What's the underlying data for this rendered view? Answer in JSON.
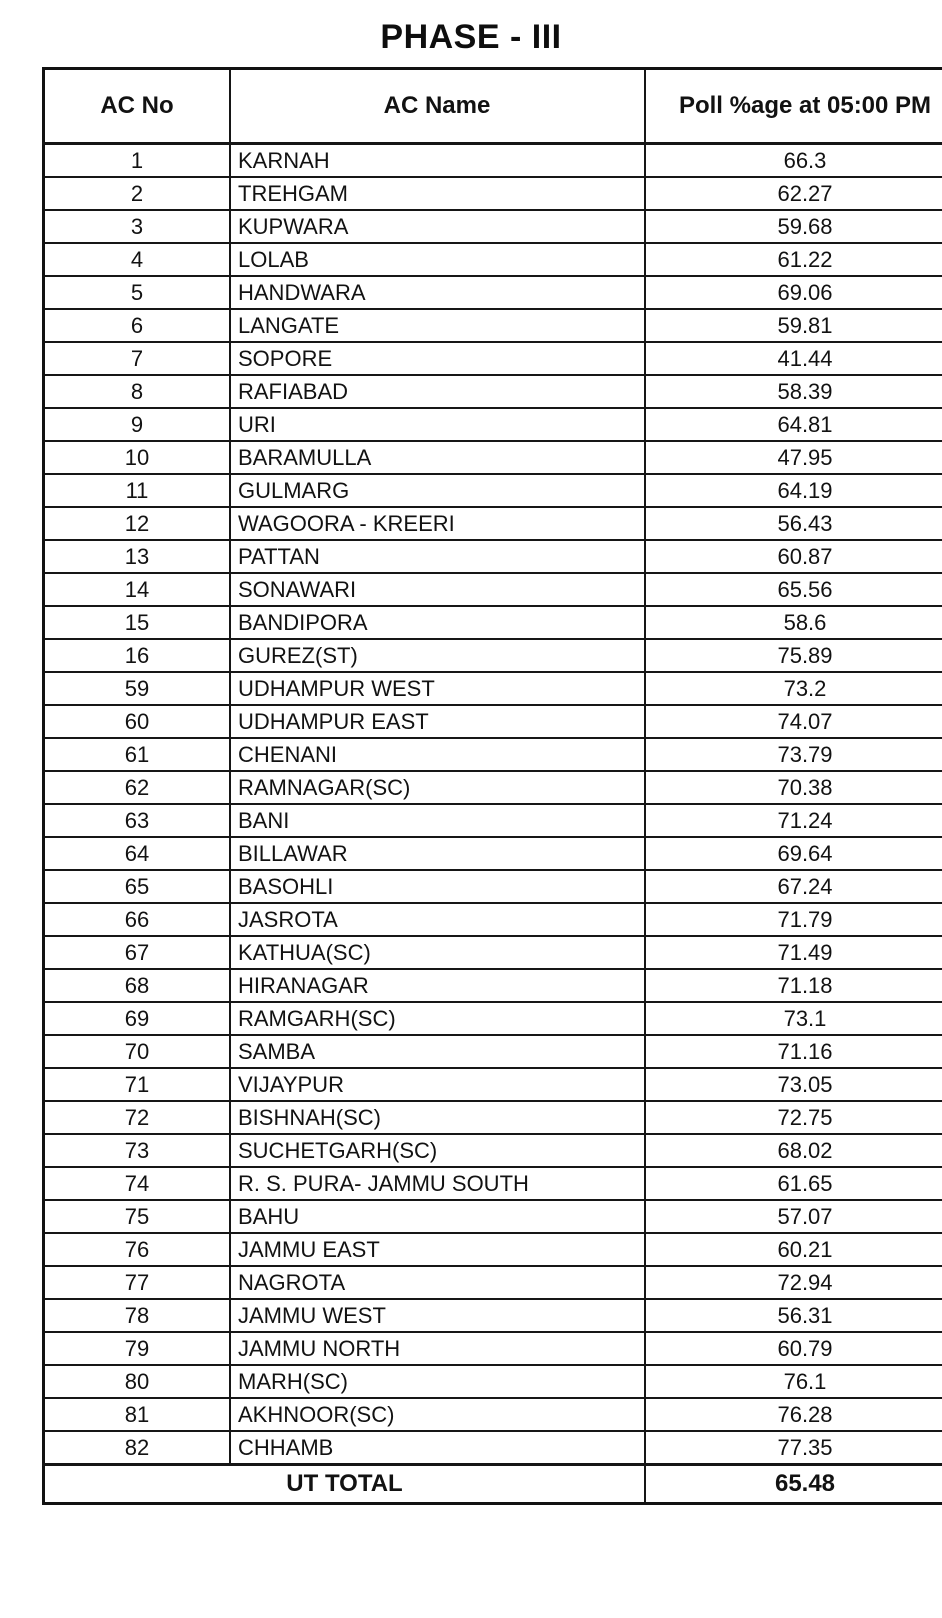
{
  "page": {
    "title": "PHASE - III"
  },
  "table": {
    "headers": [
      "AC No",
      "AC Name",
      "Poll %age at 05:00 PM"
    ],
    "rows": [
      {
        "ac_no": "1",
        "ac_name": "KARNAH",
        "poll_pct": "66.3"
      },
      {
        "ac_no": "2",
        "ac_name": "TREHGAM",
        "poll_pct": "62.27"
      },
      {
        "ac_no": "3",
        "ac_name": "KUPWARA",
        "poll_pct": "59.68"
      },
      {
        "ac_no": "4",
        "ac_name": "LOLAB",
        "poll_pct": "61.22"
      },
      {
        "ac_no": "5",
        "ac_name": "HANDWARA",
        "poll_pct": "69.06"
      },
      {
        "ac_no": "6",
        "ac_name": "LANGATE",
        "poll_pct": "59.81"
      },
      {
        "ac_no": "7",
        "ac_name": "SOPORE",
        "poll_pct": "41.44"
      },
      {
        "ac_no": "8",
        "ac_name": "RAFIABAD",
        "poll_pct": "58.39"
      },
      {
        "ac_no": "9",
        "ac_name": "URI",
        "poll_pct": "64.81"
      },
      {
        "ac_no": "10",
        "ac_name": "BARAMULLA",
        "poll_pct": "47.95"
      },
      {
        "ac_no": "11",
        "ac_name": "GULMARG",
        "poll_pct": "64.19"
      },
      {
        "ac_no": "12",
        "ac_name": "WAGOORA - KREERI",
        "poll_pct": "56.43"
      },
      {
        "ac_no": "13",
        "ac_name": "PATTAN",
        "poll_pct": "60.87"
      },
      {
        "ac_no": "14",
        "ac_name": "SONAWARI",
        "poll_pct": "65.56"
      },
      {
        "ac_no": "15",
        "ac_name": "BANDIPORA",
        "poll_pct": "58.6"
      },
      {
        "ac_no": "16",
        "ac_name": "GUREZ(ST)",
        "poll_pct": "75.89"
      },
      {
        "ac_no": "59",
        "ac_name": "UDHAMPUR WEST",
        "poll_pct": "73.2"
      },
      {
        "ac_no": "60",
        "ac_name": "UDHAMPUR EAST",
        "poll_pct": "74.07"
      },
      {
        "ac_no": "61",
        "ac_name": "CHENANI",
        "poll_pct": "73.79"
      },
      {
        "ac_no": "62",
        "ac_name": "RAMNAGAR(SC)",
        "poll_pct": "70.38"
      },
      {
        "ac_no": "63",
        "ac_name": "BANI",
        "poll_pct": "71.24"
      },
      {
        "ac_no": "64",
        "ac_name": "BILLAWAR",
        "poll_pct": "69.64"
      },
      {
        "ac_no": "65",
        "ac_name": "BASOHLI",
        "poll_pct": "67.24"
      },
      {
        "ac_no": "66",
        "ac_name": "JASROTA",
        "poll_pct": "71.79"
      },
      {
        "ac_no": "67",
        "ac_name": "KATHUA(SC)",
        "poll_pct": "71.49"
      },
      {
        "ac_no": "68",
        "ac_name": "HIRANAGAR",
        "poll_pct": "71.18"
      },
      {
        "ac_no": "69",
        "ac_name": "RAMGARH(SC)",
        "poll_pct": "73.1"
      },
      {
        "ac_no": "70",
        "ac_name": "SAMBA",
        "poll_pct": "71.16"
      },
      {
        "ac_no": "71",
        "ac_name": "VIJAYPUR",
        "poll_pct": "73.05"
      },
      {
        "ac_no": "72",
        "ac_name": "BISHNAH(SC)",
        "poll_pct": "72.75"
      },
      {
        "ac_no": "73",
        "ac_name": "SUCHETGARH(SC)",
        "poll_pct": "68.02"
      },
      {
        "ac_no": "74",
        "ac_name": "R. S. PURA- JAMMU SOUTH",
        "poll_pct": "61.65"
      },
      {
        "ac_no": "75",
        "ac_name": "BAHU",
        "poll_pct": "57.07"
      },
      {
        "ac_no": "76",
        "ac_name": "JAMMU EAST",
        "poll_pct": "60.21"
      },
      {
        "ac_no": "77",
        "ac_name": "NAGROTA",
        "poll_pct": "72.94"
      },
      {
        "ac_no": "78",
        "ac_name": "JAMMU WEST",
        "poll_pct": "56.31"
      },
      {
        "ac_no": "79",
        "ac_name": "JAMMU NORTH",
        "poll_pct": "60.79"
      },
      {
        "ac_no": "80",
        "ac_name": "MARH(SC)",
        "poll_pct": "76.1"
      },
      {
        "ac_no": "81",
        "ac_name": "AKHNOOR(SC)",
        "poll_pct": "76.28"
      },
      {
        "ac_no": "82",
        "ac_name": "CHHAMB",
        "poll_pct": "77.35"
      }
    ],
    "total": {
      "label": "UT TOTAL",
      "poll_pct": "65.48"
    }
  }
}
